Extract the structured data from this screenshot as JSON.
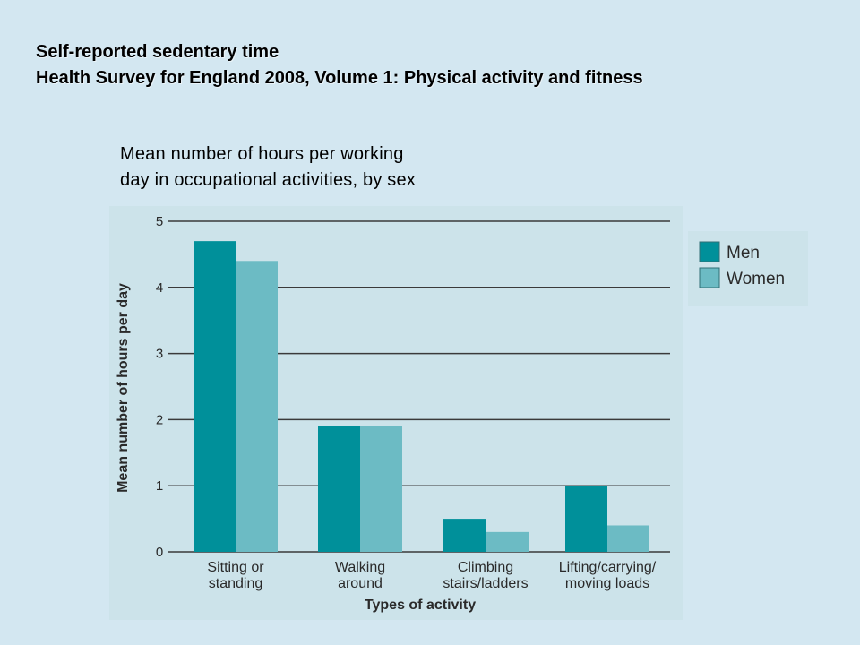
{
  "slide": {
    "title_line1": "Self-reported sedentary time",
    "title_line2": "Health Survey for England 2008, Volume 1: Physical activity and fitness"
  },
  "caption": {
    "line1": "Mean number of hours per working",
    "line2": "day in occupational activities, by sex"
  },
  "colors": {
    "background": "#d3e7f1",
    "panel": "#cce3ea",
    "men": "#00909a",
    "women": "#6cbbc4",
    "gridline": "#3a3a3a"
  },
  "chart_data": {
    "type": "bar",
    "categories": [
      [
        "Sitting or",
        "standing"
      ],
      [
        "Walking",
        "around"
      ],
      [
        "Climbing",
        "stairs/ladders"
      ],
      [
        "Lifting/carrying/",
        "moving loads"
      ]
    ],
    "series": [
      {
        "name": "Men",
        "values": [
          4.7,
          1.9,
          0.5,
          1.0
        ]
      },
      {
        "name": "Women",
        "values": [
          4.4,
          1.9,
          0.3,
          0.4
        ]
      }
    ],
    "xlabel": "Types of activity",
    "ylabel": "Mean number of hours per day",
    "ylim": [
      0,
      5
    ],
    "yticks": [
      0,
      1,
      2,
      3,
      4,
      5
    ],
    "grid": true,
    "legend_position": "top-right"
  }
}
